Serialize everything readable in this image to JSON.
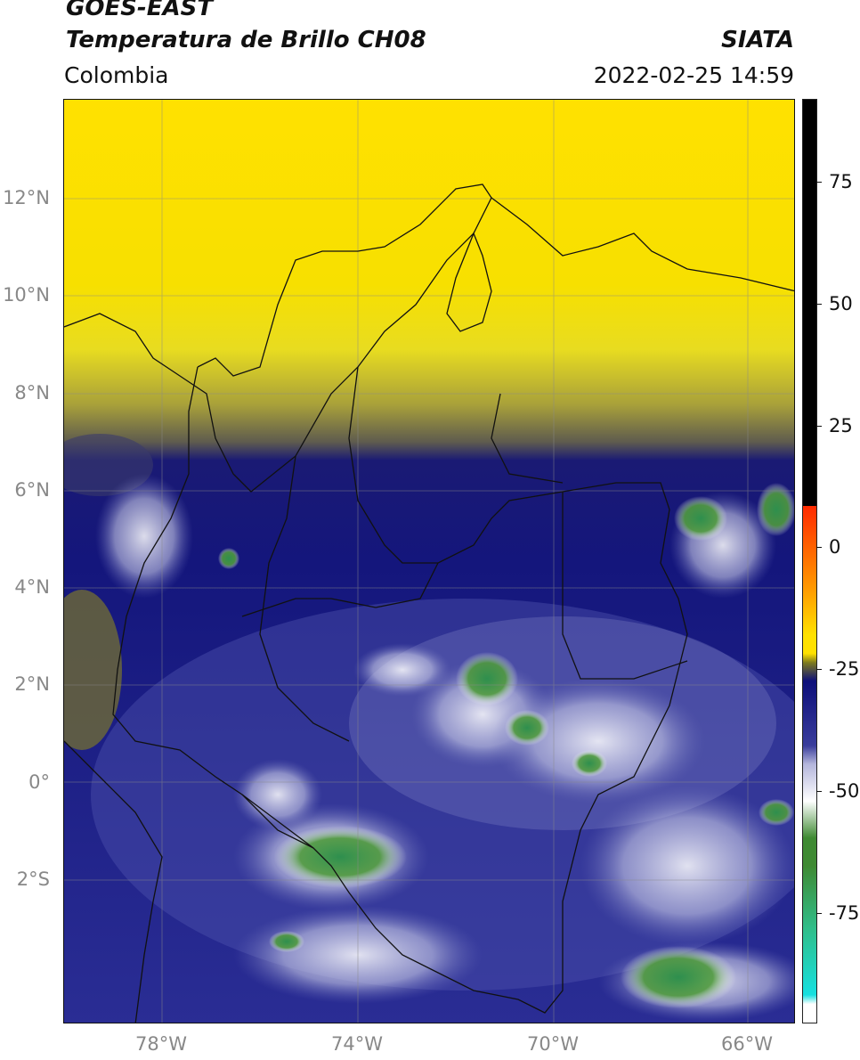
{
  "header": {
    "title_line1": "GOES-EAST",
    "title_line2": "Temperatura de Brillo CH08",
    "organization": "SIATA",
    "region": "Colombia",
    "timestamp": "2022-02-25 14:59"
  },
  "map": {
    "latitude_labels": [
      "12°N",
      "10°N",
      "8°N",
      "6°N",
      "4°N",
      "2°N",
      "0°",
      "2°S"
    ],
    "longitude_labels": [
      "78°W",
      "74°W",
      "70°W",
      "66°W"
    ],
    "gridlines": true
  },
  "colorbar": {
    "tick_labels": [
      "75",
      "50",
      "25",
      "0",
      "-25",
      "-50",
      "-75"
    ],
    "colors": {
      "black": "#000000",
      "red": "#ff2a00",
      "orange": "#ff9a00",
      "yellow": "#ffe100",
      "olive": "#7d7a1e",
      "dark_blue": "#0d0f7a",
      "blue": "#3a3d9c",
      "lavender": "#b4b6dc",
      "white": "#ffffff",
      "green": "#3f8a33",
      "teal": "#2fbf8c",
      "cyan": "#16e0e0"
    }
  },
  "chart_data": {
    "type": "heatmap",
    "title": "Temperatura de Brillo CH08",
    "colorbar_ticks": [
      75,
      50,
      25,
      0,
      -25,
      -50,
      -75
    ],
    "colorbar_range": [
      -95,
      90
    ],
    "lat_range": [
      -4.9,
      14.0
    ],
    "lon_range": [
      -80.0,
      -65.0
    ]
  }
}
